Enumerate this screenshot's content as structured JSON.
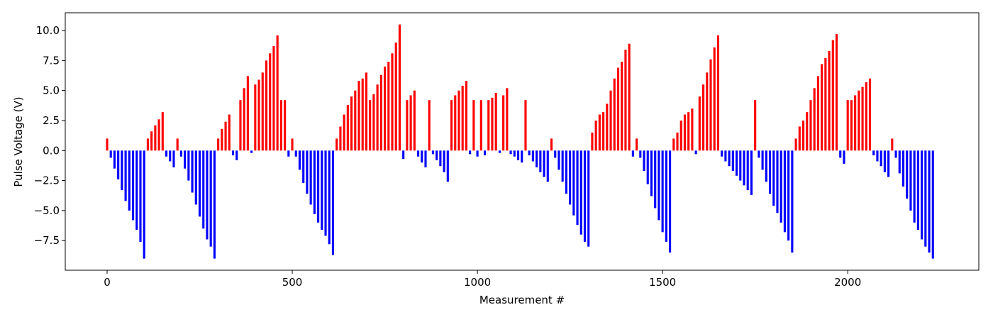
{
  "chart_data": {
    "type": "bar",
    "xlabel": "Measurement #",
    "ylabel": "Pulse Voltage (V)",
    "positive_color": "#ff0000",
    "negative_color": "#0000ff",
    "xlim": [
      -113,
      2354
    ],
    "ylim": [
      -9.97,
      11.48
    ],
    "xticks": [
      0,
      500,
      1000,
      1500,
      2000
    ],
    "yticks": [
      {
        "value": -7.5,
        "label": "−7.5"
      },
      {
        "value": -5,
        "label": "−5.0"
      },
      {
        "value": -2.5,
        "label": "−2.5"
      },
      {
        "value": 0,
        "label": "0.0"
      },
      2.5,
      {
        "value": 5,
        "label": "5.0"
      },
      7.5,
      {
        "value": 10,
        "label": "10.0"
      }
    ],
    "x": [
      0,
      10,
      20,
      30,
      40,
      50,
      60,
      70,
      80,
      90,
      100,
      110,
      120,
      130,
      140,
      150,
      160,
      170,
      180,
      190,
      200,
      210,
      220,
      230,
      240,
      250,
      260,
      270,
      280,
      290,
      300,
      310,
      320,
      330,
      340,
      350,
      360,
      370,
      380,
      390,
      400,
      410,
      420,
      430,
      440,
      450,
      460,
      470,
      480,
      490,
      500,
      510,
      520,
      530,
      540,
      550,
      560,
      570,
      580,
      590,
      600,
      610,
      620,
      630,
      640,
      650,
      660,
      670,
      680,
      690,
      700,
      710,
      720,
      730,
      740,
      750,
      760,
      770,
      780,
      790,
      800,
      810,
      820,
      830,
      840,
      850,
      860,
      870,
      880,
      890,
      900,
      910,
      920,
      930,
      940,
      950,
      960,
      970,
      980,
      990,
      1000,
      1010,
      1020,
      1030,
      1040,
      1050,
      1060,
      1070,
      1080,
      1090,
      1100,
      1110,
      1120,
      1130,
      1140,
      1150,
      1160,
      1170,
      1180,
      1190,
      1200,
      1210,
      1220,
      1230,
      1240,
      1250,
      1260,
      1270,
      1280,
      1290,
      1300,
      1310,
      1320,
      1330,
      1340,
      1350,
      1360,
      1370,
      1380,
      1390,
      1400,
      1410,
      1420,
      1430,
      1440,
      1450,
      1460,
      1470,
      1480,
      1490,
      1500,
      1510,
      1520,
      1530,
      1540,
      1550,
      1560,
      1570,
      1580,
      1590,
      1600,
      1610,
      1620,
      1630,
      1640,
      1650,
      1660,
      1670,
      1680,
      1690,
      1700,
      1710,
      1720,
      1730,
      1740,
      1750,
      1760,
      1770,
      1780,
      1790,
      1800,
      1810,
      1820,
      1830,
      1840,
      1850,
      1860,
      1870,
      1880,
      1890,
      1900,
      1910,
      1920,
      1930,
      1940,
      1950,
      1960,
      1970,
      1980,
      1990,
      2000,
      2010,
      2020,
      2030,
      2040,
      2050,
      2060,
      2070,
      2080,
      2090,
      2100,
      2110,
      2120,
      2130,
      2140,
      2150,
      2160,
      2170,
      2180,
      2190,
      2200,
      2210,
      2220,
      2230
    ],
    "values": [
      1.0,
      -0.6,
      -1.5,
      -2.4,
      -3.3,
      -4.2,
      -5.0,
      -5.8,
      -6.6,
      -7.6,
      -9.0,
      1.0,
      1.6,
      2.1,
      2.6,
      3.2,
      -0.5,
      -0.9,
      -1.4,
      1.0,
      -0.5,
      -1.5,
      -2.5,
      -3.5,
      -4.5,
      -5.5,
      -6.5,
      -7.4,
      -8.0,
      -9.0,
      1.0,
      1.8,
      2.4,
      3.0,
      -0.4,
      -0.8,
      4.2,
      5.2,
      6.2,
      -0.2,
      5.5,
      5.9,
      6.5,
      7.5,
      8.1,
      8.7,
      9.6,
      4.2,
      4.2,
      -0.5,
      1.0,
      -0.5,
      -1.6,
      -2.7,
      -3.6,
      -4.5,
      -5.3,
      -6.0,
      -6.6,
      -7.1,
      -7.8,
      -8.7,
      1.0,
      2.0,
      3.0,
      3.8,
      4.5,
      5.0,
      5.8,
      6.0,
      6.5,
      4.2,
      4.7,
      5.5,
      6.3,
      7.0,
      7.4,
      8.1,
      9.0,
      10.5,
      -0.7,
      4.2,
      4.6,
      5.0,
      -0.5,
      -1.0,
      -1.4,
      4.2,
      -0.3,
      -0.8,
      -1.3,
      -1.8,
      -2.6,
      4.2,
      4.6,
      5.0,
      5.4,
      5.8,
      -0.3,
      4.2,
      -0.5,
      4.2,
      -0.4,
      4.2,
      4.4,
      4.8,
      -0.2,
      4.6,
      5.2,
      -0.3,
      -0.5,
      -0.8,
      -1.0,
      4.2,
      -0.4,
      -0.9,
      -1.4,
      -1.8,
      -2.2,
      -2.6,
      1.0,
      -0.6,
      -1.6,
      -2.6,
      -3.6,
      -4.5,
      -5.4,
      -6.2,
      -7.0,
      -7.6,
      -8.0,
      1.5,
      2.5,
      3.0,
      3.2,
      3.9,
      5.0,
      6.0,
      6.9,
      7.4,
      8.4,
      8.9,
      -0.5,
      1.0,
      -0.6,
      -1.7,
      -2.8,
      -3.8,
      -4.8,
      -5.8,
      -6.8,
      -7.6,
      -8.5,
      1.0,
      1.5,
      2.5,
      3.0,
      3.2,
      3.5,
      -0.3,
      4.5,
      5.5,
      6.5,
      7.6,
      8.6,
      9.6,
      -0.5,
      -0.9,
      -1.3,
      -1.7,
      -2.1,
      -2.5,
      -2.9,
      -3.3,
      -3.7,
      4.2,
      -0.6,
      -1.6,
      -2.6,
      -3.6,
      -4.6,
      -5.2,
      -6.0,
      -6.8,
      -7.5,
      -8.5,
      1.0,
      2.0,
      2.5,
      3.2,
      4.2,
      5.2,
      6.2,
      7.2,
      7.7,
      8.3,
      9.2,
      9.7,
      -0.6,
      -1.1,
      4.2,
      4.2,
      4.6,
      5.0,
      5.3,
      5.7,
      6.0,
      -0.4,
      -0.9,
      -1.3,
      -1.8,
      -2.2,
      1.0,
      -0.6,
      -1.9,
      -3.0,
      -4.0,
      -5.0,
      -6.0,
      -6.6,
      -7.4,
      -8.0,
      -8.5,
      -9.0
    ]
  }
}
